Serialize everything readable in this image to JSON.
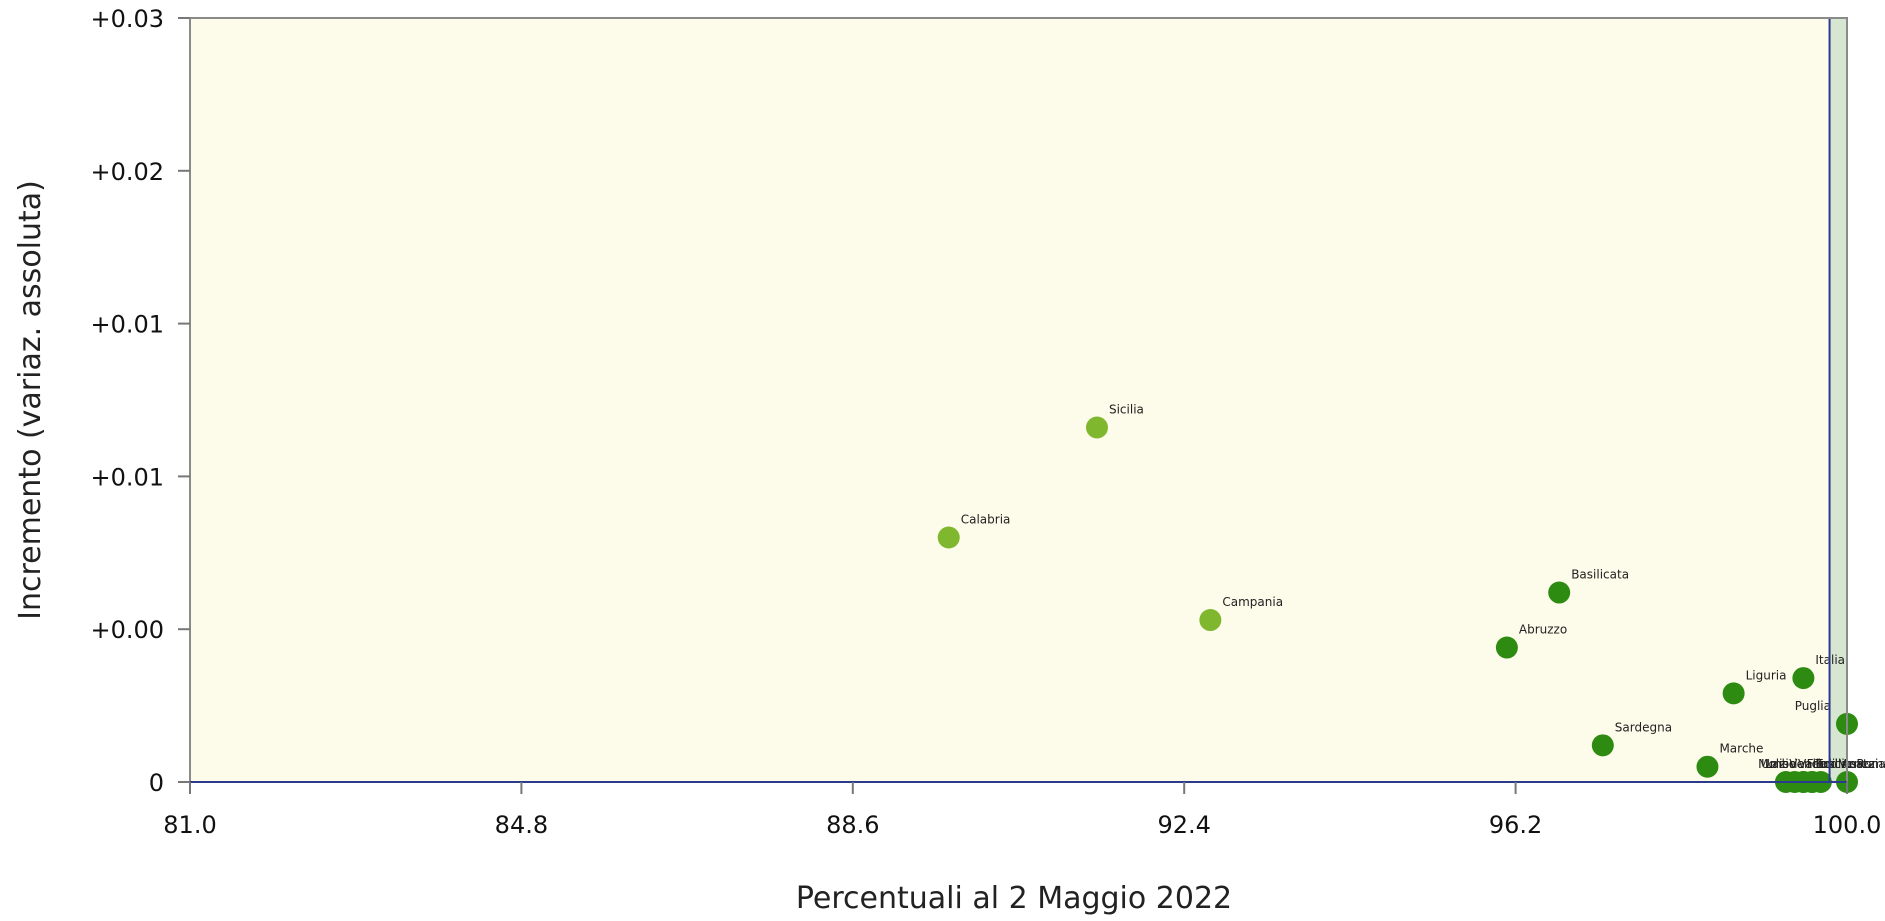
{
  "chart_data": {
    "type": "scatter",
    "xlabel": "Percentuali al 2 Maggio 2022",
    "ylabel": "Incremento (variaz. assoluta)",
    "xlim": [
      81.0,
      100.0
    ],
    "ylim": [
      0,
      0.025
    ],
    "x_ticks": [
      {
        "value": 81.0,
        "label": "81.0"
      },
      {
        "value": 84.8,
        "label": "84.8"
      },
      {
        "value": 88.6,
        "label": "88.6"
      },
      {
        "value": 92.4,
        "label": "92.4"
      },
      {
        "value": 96.2,
        "label": "96.2"
      },
      {
        "value": 100.0,
        "label": "100.0"
      }
    ],
    "y_ticks": [
      {
        "value": 0,
        "label": "0"
      },
      {
        "value": 0.005,
        "label": "+0.00"
      },
      {
        "value": 0.01,
        "label": "+0.01"
      },
      {
        "value": 0.015,
        "label": "+0.01"
      },
      {
        "value": 0.02,
        "label": "+0.02"
      },
      {
        "value": 0.025,
        "label": "+0.03"
      }
    ],
    "grid": false,
    "regions": [
      {
        "from": 81.0,
        "to": 99.8,
        "color": "#fdfbea"
      },
      {
        "from": 99.8,
        "to": 100.0,
        "color": "#d7e6d0"
      }
    ],
    "reference_line": {
      "x": 99.8,
      "color": "#2b3a8c"
    },
    "points": [
      {
        "name": "Sicilia",
        "x": 91.4,
        "y": 0.0116,
        "color": "#7fb82e"
      },
      {
        "name": "Calabria",
        "x": 89.7,
        "y": 0.008,
        "color": "#7fb82e"
      },
      {
        "name": "Campania",
        "x": 92.7,
        "y": 0.0053,
        "color": "#7fb82e"
      },
      {
        "name": "Basilicata",
        "x": 96.7,
        "y": 0.0062,
        "color": "#2e8b12"
      },
      {
        "name": "Abruzzo",
        "x": 96.1,
        "y": 0.0044,
        "color": "#2e8b12"
      },
      {
        "name": "Italia",
        "x": 99.5,
        "y": 0.0034,
        "color": "#2e8b12"
      },
      {
        "name": "Liguria",
        "x": 98.7,
        "y": 0.0029,
        "color": "#2e8b12"
      },
      {
        "name": "Puglia",
        "x": 100.0,
        "y": 0.0019,
        "color": "#2e8b12"
      },
      {
        "name": "Sardegna",
        "x": 97.2,
        "y": 0.0012,
        "color": "#2e8b12"
      },
      {
        "name": "Marche",
        "x": 98.4,
        "y": 0.0005,
        "color": "#2e8b12"
      },
      {
        "name": "Valle d'Aosta",
        "x": 99.3,
        "y": 0.0,
        "color": "#2e8b12"
      },
      {
        "name": "Friuli Venezia Giulia",
        "x": 99.4,
        "y": 0.0,
        "color": "#2e8b12"
      },
      {
        "name": "Emilia-Romagna",
        "x": 99.5,
        "y": 0.0,
        "color": "#2e8b12"
      },
      {
        "name": "Toscana",
        "x": 99.5,
        "y": 0.0,
        "color": "#2e8b12"
      },
      {
        "name": "Lazio",
        "x": 99.6,
        "y": 0.0,
        "color": "#2e8b12"
      },
      {
        "name": "Molise",
        "x": 99.6,
        "y": 0.0,
        "color": "#2e8b12"
      },
      {
        "name": "Umbria",
        "x": 99.7,
        "y": 0.0,
        "color": "#2e8b12"
      },
      {
        "name": "Veneto",
        "x": 100.0,
        "y": 0.0,
        "color": "#2e8b12"
      }
    ]
  }
}
